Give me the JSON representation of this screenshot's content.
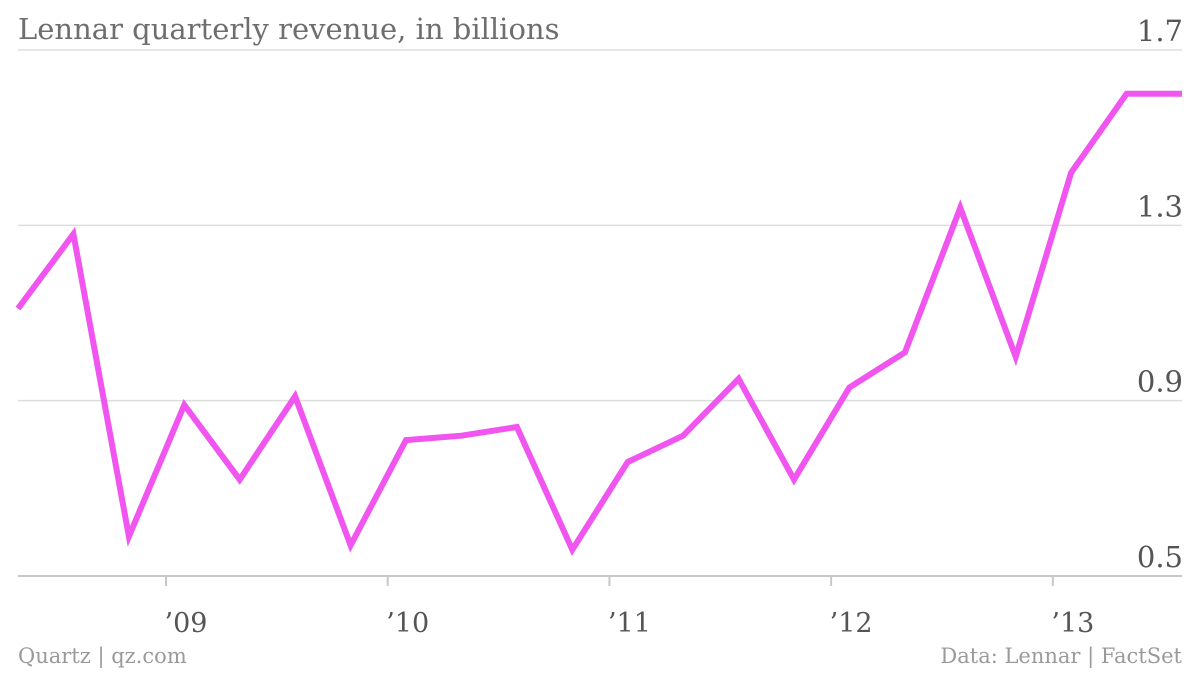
{
  "colors": {
    "line": "#f055ef",
    "grid": "#dddddd",
    "axis_text": "#555555",
    "title": "#6e6e6e",
    "footer": "#9a9a9a"
  },
  "footer": {
    "left": "Quartz | qz.com",
    "right": "Data: Lennar | FactSet"
  },
  "chart_data": {
    "type": "line",
    "title": "Lennar quarterly revenue, in billions",
    "xlabel": "",
    "ylabel": "",
    "ylim": [
      0.5,
      1.7
    ],
    "y_ticks": [
      "0.5",
      "0.9",
      "1.3",
      "1.7"
    ],
    "x_ticks": [
      "’09",
      "’10",
      "’11",
      "’12",
      "’13"
    ],
    "grid": true,
    "series": [
      {
        "x": [
          "2008-Q2",
          "2008-Q3",
          "2008-Q4",
          "2009-Q1",
          "2009-Q2",
          "2009-Q3",
          "2009-Q4",
          "2010-Q1",
          "2010-Q2",
          "2010-Q3",
          "2010-Q4",
          "2011-Q1",
          "2011-Q2",
          "2011-Q3",
          "2011-Q4",
          "2012-Q1",
          "2012-Q2",
          "2012-Q3",
          "2012-Q4",
          "2013-Q1",
          "2013-Q2",
          "2013-Q3"
        ],
        "values": [
          1.11,
          1.28,
          0.59,
          0.89,
          0.72,
          0.91,
          0.57,
          0.81,
          0.82,
          0.84,
          0.56,
          0.76,
          0.82,
          0.95,
          0.72,
          0.93,
          1.01,
          1.34,
          1.0,
          1.42,
          1.6,
          1.6
        ]
      }
    ]
  }
}
